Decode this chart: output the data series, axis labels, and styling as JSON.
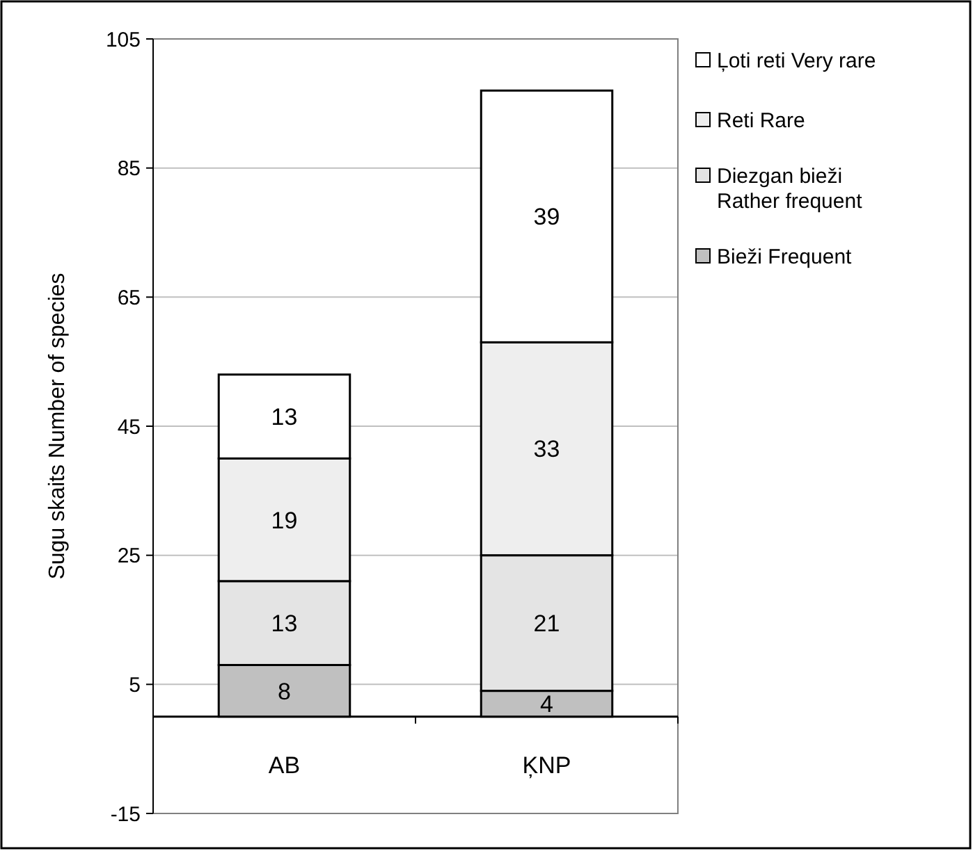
{
  "chart_data": {
    "type": "bar",
    "stacked": true,
    "ylabel": "Sugu skaits Number of species",
    "categories": [
      "AB",
      "ĶNP"
    ],
    "series": [
      {
        "name": "Bieži Frequent",
        "color": "#c0c0c0",
        "values": [
          8,
          4
        ]
      },
      {
        "name": "Diezgan bieži Rather frequent",
        "color": "#e4e4e4",
        "values": [
          13,
          21
        ]
      },
      {
        "name": "Reti Rare",
        "color": "#eeeeee",
        "values": [
          19,
          33
        ]
      },
      {
        "name": "Ļoti reti Very rare",
        "color": "#ffffff",
        "values": [
          13,
          39
        ]
      }
    ],
    "ylim": [
      -15,
      105
    ],
    "yticks": [
      -15,
      5,
      25,
      45,
      65,
      85,
      105
    ],
    "grid": "y",
    "legend": "top right",
    "data_labels": true
  }
}
